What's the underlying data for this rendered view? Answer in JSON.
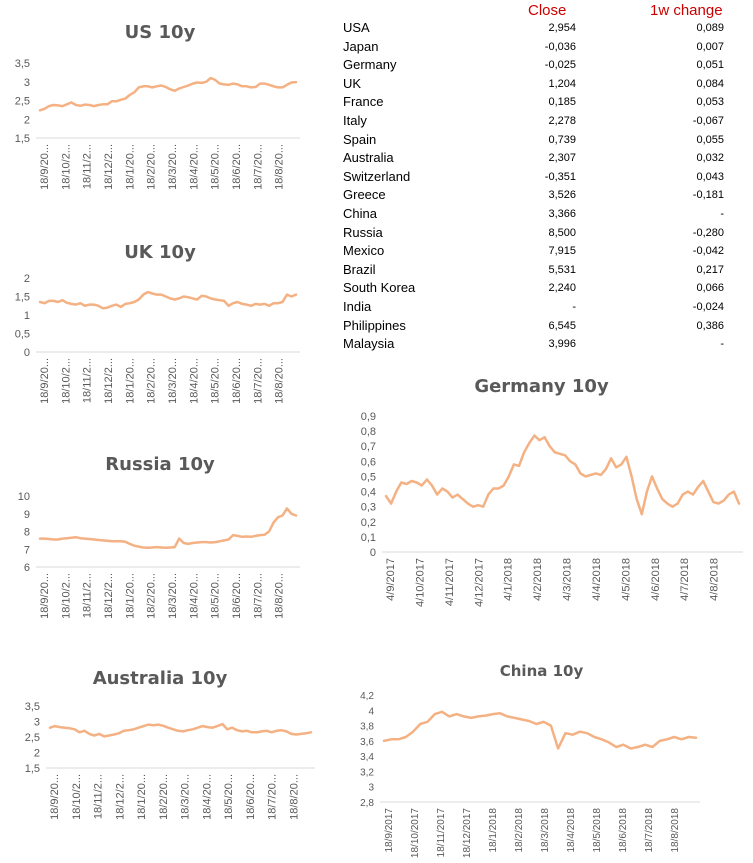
{
  "table": {
    "headers": {
      "close": "Close",
      "change": "1w change"
    },
    "rows": [
      {
        "country": "USA",
        "close": "2,954",
        "change": "0,089"
      },
      {
        "country": "Japan",
        "close": "-0,036",
        "change": "0,007"
      },
      {
        "country": "Germany",
        "close": "-0,025",
        "change": "0,051"
      },
      {
        "country": "UK",
        "close": "1,204",
        "change": "0,084"
      },
      {
        "country": "France",
        "close": "0,185",
        "change": "0,053"
      },
      {
        "country": "Italy",
        "close": "2,278",
        "change": "-0,067"
      },
      {
        "country": "Spain",
        "close": "0,739",
        "change": "0,055"
      },
      {
        "country": "Australia",
        "close": "2,307",
        "change": "0,032"
      },
      {
        "country": "Switzerland",
        "close": "-0,351",
        "change": "0,043"
      },
      {
        "country": "Greece",
        "close": "3,526",
        "change": "-0,181"
      },
      {
        "country": "China",
        "close": "3,366",
        "change": "-"
      },
      {
        "country": "Russia",
        "close": "8,500",
        "change": "-0,280"
      },
      {
        "country": "Mexico",
        "close": "7,915",
        "change": "-0,042"
      },
      {
        "country": "Brazil",
        "close": "5,531",
        "change": "0,217"
      },
      {
        "country": "South Korea",
        "close": "2,240",
        "change": "0,066"
      },
      {
        "country": "India",
        "close": "-",
        "change": "-0,024"
      },
      {
        "country": "Philippines",
        "close": "6,545",
        "change": "0,386"
      },
      {
        "country": "Malaysia",
        "close": "3,996",
        "change": "-"
      }
    ]
  },
  "line_color": "#f4b183",
  "chart_data": [
    {
      "id": "us",
      "type": "line",
      "title": "US 10y",
      "ylim": [
        1.5,
        3.5
      ],
      "yticks": [
        "1,5",
        "2",
        "2,5",
        "3",
        "3,5"
      ],
      "ytick_values": [
        1.5,
        2,
        2.5,
        3,
        3.5
      ],
      "xticks": [
        "18/9/20...",
        "18/10/2...",
        "18/11/2...",
        "18/12/2...",
        "18/1/20...",
        "18/2/20...",
        "18/3/20...",
        "18/4/20...",
        "18/5/20...",
        "18/6/20...",
        "18/7/20...",
        "18/8/20..."
      ],
      "series": [
        {
          "values": [
            2.24,
            2.28,
            2.35,
            2.38,
            2.37,
            2.35,
            2.4,
            2.45,
            2.38,
            2.36,
            2.39,
            2.38,
            2.35,
            2.38,
            2.4,
            2.4,
            2.48,
            2.48,
            2.52,
            2.55,
            2.65,
            2.72,
            2.85,
            2.88,
            2.88,
            2.85,
            2.88,
            2.9,
            2.86,
            2.8,
            2.76,
            2.82,
            2.86,
            2.9,
            2.95,
            2.98,
            2.97,
            3.0,
            3.1,
            3.05,
            2.95,
            2.93,
            2.92,
            2.95,
            2.93,
            2.88,
            2.88,
            2.85,
            2.86,
            2.95,
            2.95,
            2.92,
            2.88,
            2.85,
            2.85,
            2.92,
            2.98,
            2.99
          ]
        }
      ]
    },
    {
      "id": "uk",
      "type": "line",
      "title": "UK 10y",
      "ylim": [
        0,
        2
      ],
      "yticks": [
        "0",
        "0,5",
        "1",
        "1,5",
        "2"
      ],
      "ytick_values": [
        0,
        0.5,
        1,
        1.5,
        2
      ],
      "xticks": [
        "18/9/20...",
        "18/10/2...",
        "18/11/2...",
        "18/12/2...",
        "18/1/20...",
        "18/2/20...",
        "18/3/20...",
        "18/4/20...",
        "18/5/20...",
        "18/6/20...",
        "18/7/20...",
        "18/8/20..."
      ],
      "series": [
        {
          "values": [
            1.35,
            1.32,
            1.38,
            1.38,
            1.35,
            1.4,
            1.33,
            1.3,
            1.28,
            1.32,
            1.25,
            1.28,
            1.28,
            1.25,
            1.18,
            1.2,
            1.25,
            1.28,
            1.22,
            1.3,
            1.32,
            1.35,
            1.42,
            1.55,
            1.62,
            1.58,
            1.55,
            1.55,
            1.5,
            1.45,
            1.42,
            1.45,
            1.5,
            1.48,
            1.45,
            1.42,
            1.52,
            1.5,
            1.45,
            1.42,
            1.4,
            1.38,
            1.25,
            1.32,
            1.35,
            1.3,
            1.28,
            1.25,
            1.3,
            1.28,
            1.3,
            1.25,
            1.32,
            1.32,
            1.35,
            1.55,
            1.5,
            1.55
          ]
        }
      ]
    },
    {
      "id": "russia",
      "type": "line",
      "title": "Russia 10y",
      "ylim": [
        6,
        10
      ],
      "yticks": [
        "6",
        "7",
        "8",
        "9",
        "10"
      ],
      "ytick_values": [
        6,
        7,
        8,
        9,
        10
      ],
      "xticks": [
        "18/9/20...",
        "18/10/2...",
        "18/11/2...",
        "18/12/2...",
        "18/1/20...",
        "18/2/20...",
        "18/3/20...",
        "18/4/20...",
        "18/5/20...",
        "18/6/20...",
        "18/7/20...",
        "18/8/20..."
      ],
      "series": [
        {
          "values": [
            7.6,
            7.6,
            7.58,
            7.55,
            7.55,
            7.6,
            7.62,
            7.65,
            7.68,
            7.62,
            7.6,
            7.58,
            7.55,
            7.52,
            7.5,
            7.48,
            7.45,
            7.45,
            7.45,
            7.42,
            7.3,
            7.2,
            7.15,
            7.1,
            7.08,
            7.1,
            7.12,
            7.1,
            7.08,
            7.1,
            7.12,
            7.6,
            7.35,
            7.3,
            7.35,
            7.38,
            7.4,
            7.4,
            7.38,
            7.4,
            7.45,
            7.5,
            7.55,
            7.8,
            7.75,
            7.7,
            7.72,
            7.7,
            7.75,
            7.8,
            7.82,
            8.0,
            8.5,
            8.8,
            8.9,
            9.3,
            9.0,
            8.9
          ]
        }
      ]
    },
    {
      "id": "germany",
      "type": "line",
      "title": "Germany 10y",
      "ylim": [
        0,
        0.9
      ],
      "yticks": [
        "0",
        "0,1",
        "0,2",
        "0,3",
        "0,4",
        "0,5",
        "0,6",
        "0,7",
        "0,8",
        "0,9"
      ],
      "ytick_values": [
        0,
        0.1,
        0.2,
        0.3,
        0.4,
        0.5,
        0.6,
        0.7,
        0.8,
        0.9
      ],
      "xticks": [
        "4/9/2017",
        "4/10/2017",
        "4/11/2017",
        "4/12/2017",
        "4/1/2018",
        "4/2/2018",
        "4/3/2018",
        "4/4/2018",
        "4/5/2018",
        "4/6/2018",
        "4/7/2018",
        "4/8/2018"
      ],
      "series": [
        {
          "values": [
            0.37,
            0.32,
            0.4,
            0.46,
            0.45,
            0.47,
            0.46,
            0.44,
            0.48,
            0.44,
            0.38,
            0.42,
            0.4,
            0.36,
            0.38,
            0.35,
            0.32,
            0.3,
            0.31,
            0.3,
            0.38,
            0.42,
            0.42,
            0.44,
            0.5,
            0.58,
            0.57,
            0.66,
            0.72,
            0.77,
            0.74,
            0.76,
            0.7,
            0.66,
            0.65,
            0.64,
            0.6,
            0.58,
            0.52,
            0.5,
            0.51,
            0.52,
            0.51,
            0.55,
            0.62,
            0.56,
            0.58,
            0.63,
            0.5,
            0.35,
            0.25,
            0.4,
            0.5,
            0.42,
            0.35,
            0.32,
            0.3,
            0.32,
            0.38,
            0.4,
            0.38,
            0.43,
            0.47,
            0.4,
            0.33,
            0.32,
            0.34,
            0.38,
            0.4,
            0.32
          ]
        }
      ]
    },
    {
      "id": "australia",
      "type": "line",
      "title": "Australia 10y",
      "ylim": [
        1.5,
        3.5
      ],
      "yticks": [
        "1,5",
        "2",
        "2,5",
        "3",
        "3,5"
      ],
      "ytick_values": [
        1.5,
        2,
        2.5,
        3,
        3.5
      ],
      "xticks": [
        "18/9/20...",
        "18/10/2...",
        "18/11/2...",
        "18/12/2...",
        "18/1/20...",
        "18/2/20...",
        "18/3/20...",
        "18/4/20...",
        "18/5/20...",
        "18/6/20...",
        "18/7/20...",
        "18/8/20..."
      ],
      "series": [
        {
          "values": [
            2.8,
            2.85,
            2.82,
            2.8,
            2.78,
            2.75,
            2.65,
            2.7,
            2.6,
            2.55,
            2.6,
            2.52,
            2.55,
            2.58,
            2.62,
            2.7,
            2.72,
            2.75,
            2.8,
            2.85,
            2.9,
            2.88,
            2.9,
            2.86,
            2.8,
            2.75,
            2.7,
            2.68,
            2.72,
            2.75,
            2.8,
            2.85,
            2.82,
            2.8,
            2.85,
            2.92,
            2.75,
            2.8,
            2.72,
            2.68,
            2.7,
            2.65,
            2.65,
            2.68,
            2.7,
            2.65,
            2.7,
            2.72,
            2.68,
            2.6,
            2.58,
            2.6,
            2.62,
            2.65
          ]
        }
      ]
    },
    {
      "id": "china",
      "type": "line",
      "title": "China 10y",
      "ylim": [
        2.8,
        4.2
      ],
      "yticks": [
        "2,8",
        "3",
        "3,2",
        "3,4",
        "3,6",
        "3,8",
        "4",
        "4,2"
      ],
      "ytick_values": [
        2.8,
        3.0,
        3.2,
        3.4,
        3.6,
        3.8,
        4.0,
        4.2
      ],
      "xticks": [
        "18/9/2017",
        "18/10/2017",
        "18/11/2017",
        "18/12/2017",
        "18/1/2018",
        "18/2/2018",
        "18/3/2018",
        "18/4/2018",
        "18/5/2018",
        "18/6/2018",
        "18/7/2018",
        "18/8/2018"
      ],
      "series": [
        {
          "values": [
            3.6,
            3.62,
            3.62,
            3.65,
            3.72,
            3.82,
            3.85,
            3.95,
            3.98,
            3.92,
            3.95,
            3.92,
            3.9,
            3.92,
            3.93,
            3.95,
            3.96,
            3.92,
            3.9,
            3.88,
            3.86,
            3.82,
            3.85,
            3.8,
            3.5,
            3.7,
            3.68,
            3.72,
            3.7,
            3.65,
            3.62,
            3.58,
            3.52,
            3.55,
            3.5,
            3.52,
            3.55,
            3.52,
            3.6,
            3.62,
            3.65,
            3.62,
            3.65,
            3.64
          ]
        }
      ]
    }
  ]
}
